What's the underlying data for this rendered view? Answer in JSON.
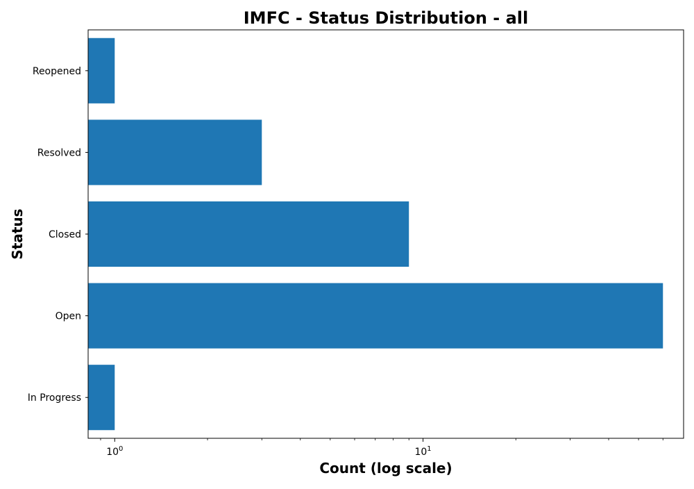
{
  "chart_data": {
    "type": "bar",
    "orientation": "horizontal",
    "title": "IMFC - Status Distribution - all",
    "xlabel": "Count (log scale)",
    "ylabel": "Status",
    "x_scale": "log",
    "xlim": [
      0.82,
      70
    ],
    "x_ticks": [
      {
        "value": 1,
        "base": "10",
        "exponent": "0"
      },
      {
        "value": 10,
        "base": "10",
        "exponent": "1"
      }
    ],
    "categories": [
      "In Progress",
      "Open",
      "Closed",
      "Resolved",
      "Reopened"
    ],
    "values": [
      1,
      60,
      9,
      3,
      1
    ],
    "bar_color": "#1f77b4",
    "grid": false,
    "legend": "none"
  }
}
